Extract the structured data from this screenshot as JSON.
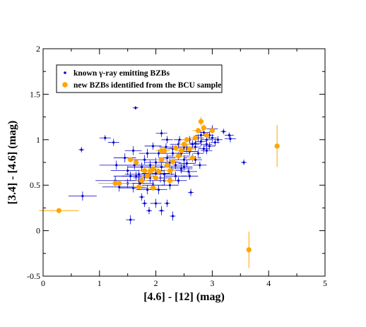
{
  "chart_data": {
    "type": "scatter",
    "title": "",
    "xlabel": "[4.6] - [12] (mag)",
    "ylabel": "[3.4] - [4.6] (mag)",
    "xlim": [
      0,
      5
    ],
    "ylim": [
      -0.5,
      2
    ],
    "x_ticks": [
      "0",
      "1",
      "2",
      "3",
      "4",
      "5"
    ],
    "y_ticks": [
      "-0.5",
      "0",
      "0.5",
      "1",
      "1.5",
      "2"
    ],
    "grid": false,
    "legend_position": "top-left",
    "series": [
      {
        "name": "known γ-ray emitting BZBs",
        "color": "#0000cc",
        "marker": "dot-with-errorbars",
        "points": [
          [
            1.64,
            1.35,
            0.05,
            0.02
          ],
          [
            0.68,
            0.89,
            0.05,
            0.03
          ],
          [
            1.1,
            1.02,
            0.1,
            0.03
          ],
          [
            1.25,
            0.97,
            0.1,
            0.04
          ],
          [
            0.7,
            0.38,
            0.25,
            0.05
          ],
          [
            1.55,
            0.12,
            0.08,
            0.05
          ],
          [
            3.56,
            0.75,
            0.05,
            0.03
          ],
          [
            3.0,
            1.12,
            0.1,
            0.04
          ],
          [
            3.2,
            1.09,
            0.05,
            0.03
          ],
          [
            3.3,
            1.05,
            0.08,
            0.03
          ],
          [
            3.32,
            1.01,
            0.1,
            0.04
          ],
          [
            2.3,
            0.16,
            0.05,
            0.05
          ],
          [
            2.1,
            0.22,
            0.05,
            0.05
          ],
          [
            2.0,
            0.3,
            0.1,
            0.05
          ],
          [
            2.2,
            0.3,
            0.05,
            0.04
          ],
          [
            1.8,
            0.3,
            0.05,
            0.04
          ],
          [
            1.75,
            0.37,
            0.05,
            0.04
          ],
          [
            1.88,
            0.22,
            0.05,
            0.04
          ],
          [
            2.62,
            0.42,
            0.05,
            0.04
          ],
          [
            1.28,
            0.55,
            0.35,
            0.05
          ],
          [
            1.3,
            0.72,
            0.3,
            0.05
          ],
          [
            1.5,
            0.66,
            0.3,
            0.05
          ],
          [
            1.45,
            0.8,
            0.2,
            0.05
          ],
          [
            1.6,
            0.88,
            0.15,
            0.05
          ],
          [
            1.7,
            0.55,
            0.25,
            0.05
          ],
          [
            1.35,
            0.48,
            0.3,
            0.05
          ],
          [
            2.3,
            0.9,
            0.1,
            0.04
          ],
          [
            2.8,
            0.98,
            0.1,
            0.05
          ],
          [
            2.95,
            1.05,
            0.08,
            0.04
          ],
          [
            2.6,
            0.87,
            0.15,
            0.04
          ],
          [
            2.4,
            0.82,
            0.2,
            0.04
          ],
          [
            2.25,
            0.75,
            0.2,
            0.04
          ],
          [
            2.1,
            0.7,
            0.25,
            0.05
          ],
          [
            2.0,
            0.63,
            0.25,
            0.05
          ],
          [
            1.9,
            0.58,
            0.3,
            0.05
          ],
          [
            2.5,
            0.78,
            0.2,
            0.05
          ],
          [
            2.7,
            0.92,
            0.1,
            0.04
          ],
          [
            2.15,
            0.55,
            0.2,
            0.05
          ],
          [
            2.35,
            0.6,
            0.2,
            0.05
          ],
          [
            2.45,
            0.68,
            0.2,
            0.05
          ],
          [
            2.55,
            0.74,
            0.15,
            0.04
          ],
          [
            2.65,
            0.8,
            0.15,
            0.04
          ],
          [
            2.75,
            0.85,
            0.1,
            0.04
          ],
          [
            2.85,
            0.9,
            0.1,
            0.04
          ],
          [
            2.9,
            0.95,
            0.1,
            0.04
          ],
          [
            3.05,
            0.97,
            0.08,
            0.04
          ],
          [
            2.1,
            1.07,
            0.1,
            0.04
          ],
          [
            2.2,
            1.0,
            0.1,
            0.04
          ],
          [
            1.95,
            0.93,
            0.15,
            0.04
          ],
          [
            1.85,
            0.85,
            0.15,
            0.05
          ],
          [
            1.8,
            0.78,
            0.2,
            0.05
          ],
          [
            1.75,
            0.7,
            0.25,
            0.05
          ],
          [
            1.7,
            0.62,
            0.25,
            0.05
          ],
          [
            1.65,
            0.6,
            0.25,
            0.05
          ],
          [
            1.95,
            0.5,
            0.2,
            0.05
          ],
          [
            2.05,
            0.45,
            0.15,
            0.05
          ],
          [
            1.85,
            0.45,
            0.2,
            0.05
          ],
          [
            1.6,
            0.47,
            0.25,
            0.05
          ],
          [
            1.5,
            0.52,
            0.3,
            0.05
          ],
          [
            2.4,
            0.95,
            0.15,
            0.04
          ],
          [
            2.6,
            1.0,
            0.1,
            0.04
          ],
          [
            2.8,
            1.05,
            0.1,
            0.04
          ],
          [
            2.5,
            0.92,
            0.1,
            0.04
          ],
          [
            2.3,
            0.85,
            0.15,
            0.04
          ],
          [
            2.2,
            0.8,
            0.15,
            0.04
          ],
          [
            2.0,
            0.75,
            0.2,
            0.05
          ],
          [
            2.6,
            0.6,
            0.15,
            0.04
          ],
          [
            2.4,
            0.55,
            0.15,
            0.04
          ],
          [
            2.25,
            0.5,
            0.15,
            0.05
          ],
          [
            2.15,
            0.62,
            0.2,
            0.05
          ],
          [
            2.35,
            0.72,
            0.2,
            0.04
          ],
          [
            2.45,
            0.85,
            0.15,
            0.04
          ],
          [
            2.55,
            0.9,
            0.12,
            0.04
          ],
          [
            2.7,
            0.96,
            0.1,
            0.04
          ],
          [
            2.9,
            1.0,
            0.1,
            0.04
          ],
          [
            3.0,
            1.02,
            0.08,
            0.04
          ],
          [
            2.85,
            1.08,
            0.1,
            0.04
          ],
          [
            2.75,
            1.02,
            0.1,
            0.04
          ],
          [
            2.65,
            0.95,
            0.12,
            0.04
          ],
          [
            2.05,
            0.85,
            0.15,
            0.04
          ],
          [
            1.9,
            0.72,
            0.2,
            0.05
          ],
          [
            1.8,
            0.6,
            0.2,
            0.05
          ],
          [
            1.72,
            0.52,
            0.25,
            0.05
          ],
          [
            2.08,
            0.58,
            0.2,
            0.05
          ],
          [
            2.28,
            0.66,
            0.2,
            0.05
          ],
          [
            2.5,
            0.7,
            0.15,
            0.04
          ],
          [
            2.7,
            0.78,
            0.12,
            0.04
          ],
          [
            2.9,
            0.88,
            0.1,
            0.04
          ],
          [
            3.1,
            1.0,
            0.08,
            0.04
          ],
          [
            2.42,
            1.0,
            0.1,
            0.04
          ],
          [
            2.95,
            0.93,
            0.1,
            0.04
          ],
          [
            1.62,
            0.72,
            0.3,
            0.05
          ],
          [
            1.55,
            0.6,
            0.3,
            0.05
          ],
          [
            2.18,
            0.92,
            0.12,
            0.04
          ],
          [
            2.58,
            0.65,
            0.15,
            0.04
          ],
          [
            2.78,
            0.72,
            0.12,
            0.04
          ]
        ]
      },
      {
        "name": "new BZBs identified from the BCU sample",
        "color": "#ffa500",
        "marker": "circle-with-errorbars",
        "points": [
          [
            0.28,
            0.22,
            0.35,
            0.02
          ],
          [
            4.15,
            0.93,
            0.03,
            0.23
          ],
          [
            3.65,
            -0.21,
            0.03,
            0.2
          ],
          [
            1.28,
            0.52,
            0.3,
            0.04
          ],
          [
            1.35,
            0.52,
            0.05,
            0.03
          ],
          [
            1.55,
            0.78,
            0.05,
            0.03
          ],
          [
            1.65,
            0.75,
            0.05,
            0.03
          ],
          [
            1.7,
            0.48,
            0.1,
            0.03
          ],
          [
            1.75,
            0.55,
            0.1,
            0.03
          ],
          [
            1.8,
            0.66,
            0.1,
            0.03
          ],
          [
            1.85,
            0.6,
            0.1,
            0.03
          ],
          [
            1.9,
            0.65,
            0.05,
            0.03
          ],
          [
            1.95,
            0.47,
            0.1,
            0.03
          ],
          [
            2.0,
            0.58,
            0.1,
            0.03
          ],
          [
            2.05,
            0.65,
            0.1,
            0.03
          ],
          [
            2.1,
            0.78,
            0.1,
            0.03
          ],
          [
            2.15,
            0.88,
            0.1,
            0.03
          ],
          [
            2.2,
            0.72,
            0.1,
            0.03
          ],
          [
            2.25,
            0.66,
            0.1,
            0.03
          ],
          [
            2.3,
            0.76,
            0.1,
            0.03
          ],
          [
            2.25,
            0.55,
            0.1,
            0.03
          ],
          [
            2.35,
            0.91,
            0.1,
            0.03
          ],
          [
            2.4,
            0.82,
            0.1,
            0.03
          ],
          [
            2.45,
            0.88,
            0.1,
            0.03
          ],
          [
            2.5,
            0.95,
            0.1,
            0.03
          ],
          [
            2.55,
            1.0,
            0.1,
            0.03
          ],
          [
            2.6,
            0.9,
            0.1,
            0.03
          ],
          [
            2.65,
            0.8,
            0.1,
            0.03
          ],
          [
            2.7,
            1.02,
            0.1,
            0.03
          ],
          [
            2.75,
            1.1,
            0.1,
            0.03
          ],
          [
            2.8,
            1.2,
            0.05,
            0.05
          ],
          [
            2.85,
            1.13,
            0.05,
            0.04
          ],
          [
            2.9,
            1.05,
            0.05,
            0.03
          ],
          [
            3.0,
            1.1,
            0.05,
            0.03
          ],
          [
            2.1,
            0.88,
            0.1,
            0.03
          ],
          [
            1.95,
            0.68,
            0.1,
            0.03
          ]
        ]
      }
    ]
  }
}
